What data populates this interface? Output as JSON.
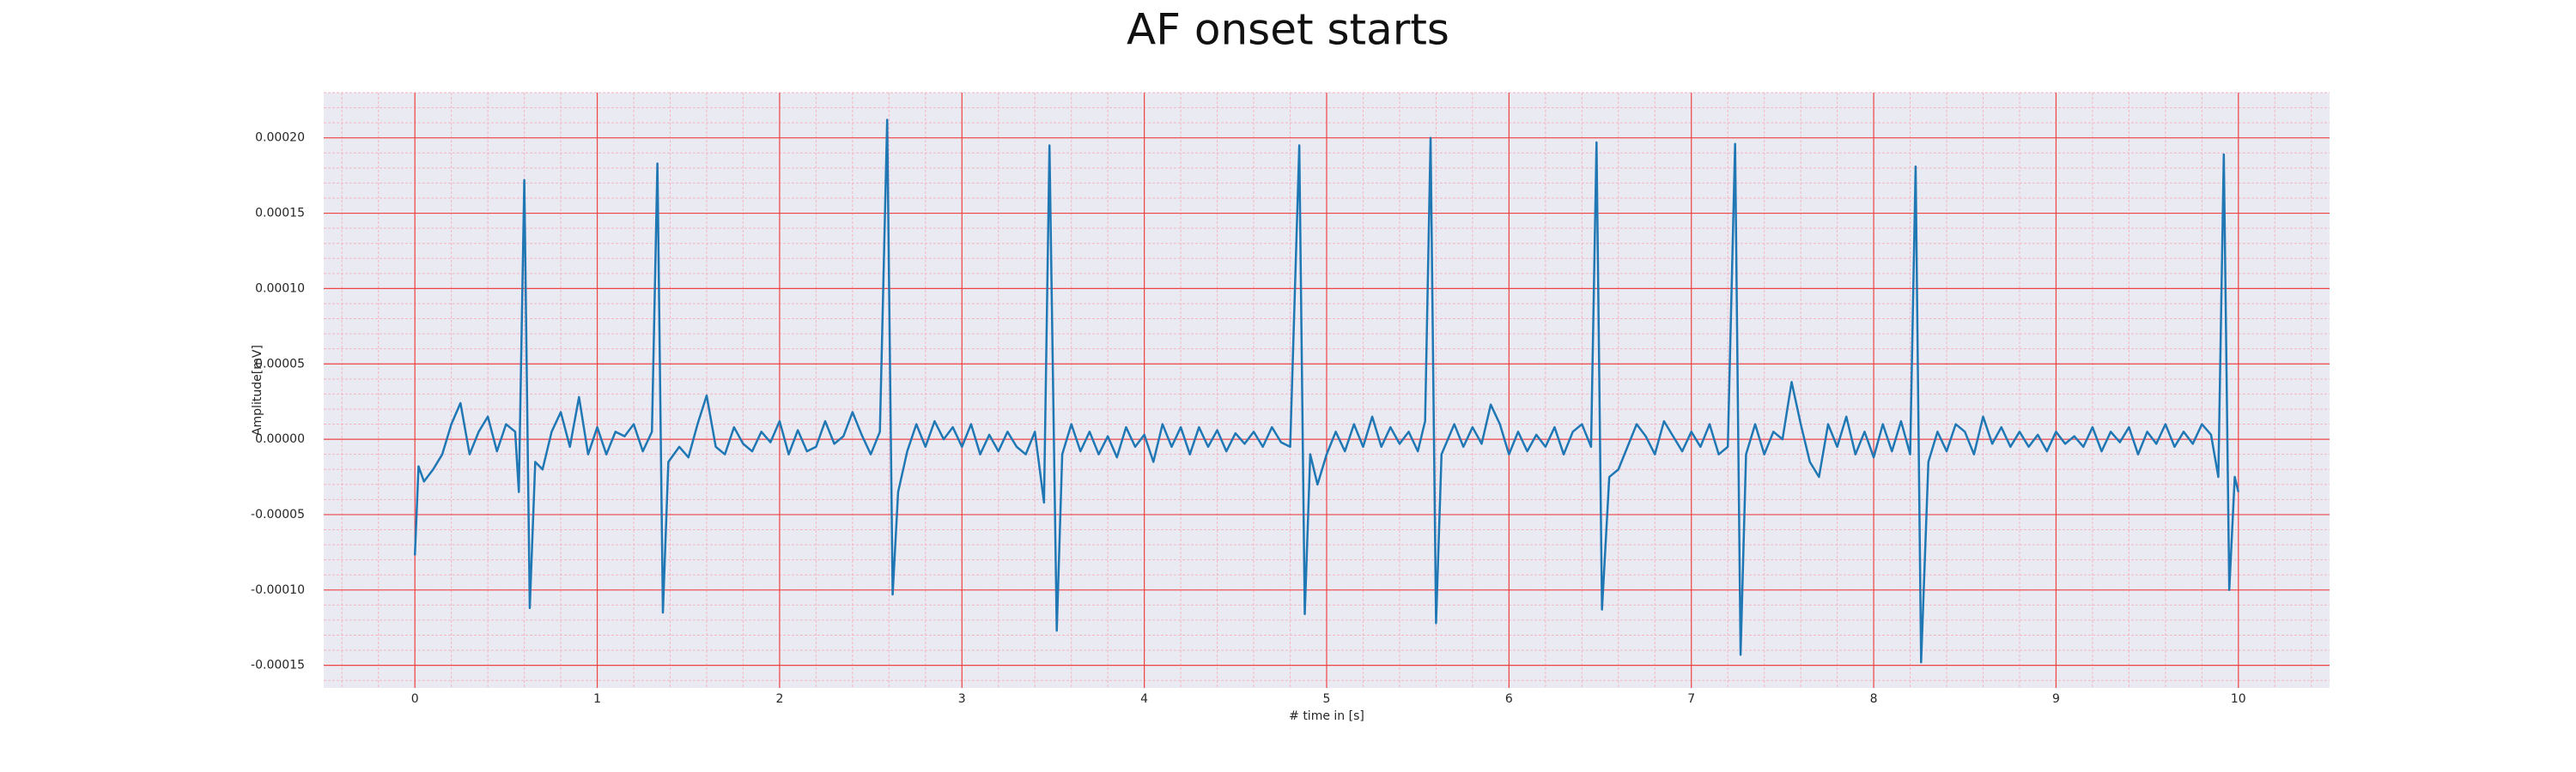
{
  "chart_data": {
    "type": "line",
    "title": "AF onset starts",
    "x_label": "# time in [s]",
    "y_label": "Amplitude[mV]",
    "color": "#1f77b4",
    "grid": true,
    "minor_grid": {
      "x_step": 0.2,
      "y_step": 1e-05
    },
    "xlim": [
      -0.5,
      10.5
    ],
    "ylim": [
      -0.000165,
      0.00023
    ],
    "xticks": [
      0,
      1,
      2,
      3,
      4,
      5,
      6,
      7,
      8,
      9,
      10
    ],
    "yticks": [
      {
        "value": -0.00015,
        "label": "-0.00015"
      },
      {
        "value": -0.0001,
        "label": "-0.00010"
      },
      {
        "value": -5e-05,
        "label": "-0.00005"
      },
      {
        "value": 0,
        "label": "0.00000"
      },
      {
        "value": 5e-05,
        "label": "0.00005"
      },
      {
        "value": 0.0001,
        "label": "0.00010"
      },
      {
        "value": 0.00015,
        "label": "0.00015"
      },
      {
        "value": 0.0002,
        "label": "0.00020"
      }
    ],
    "x": [
      0,
      0.02,
      0.05,
      0.1,
      0.15,
      0.2,
      0.25,
      0.3,
      0.35,
      0.4,
      0.45,
      0.5,
      0.55,
      0.57,
      0.6,
      0.63,
      0.66,
      0.7,
      0.75,
      0.8,
      0.85,
      0.9,
      0.95,
      1.0,
      1.05,
      1.1,
      1.15,
      1.2,
      1.25,
      1.3,
      1.33,
      1.36,
      1.39,
      1.45,
      1.5,
      1.55,
      1.6,
      1.65,
      1.7,
      1.75,
      1.8,
      1.85,
      1.9,
      1.95,
      2.0,
      2.05,
      2.1,
      2.15,
      2.2,
      2.25,
      2.3,
      2.35,
      2.4,
      2.45,
      2.5,
      2.55,
      2.59,
      2.62,
      2.65,
      2.7,
      2.75,
      2.8,
      2.85,
      2.9,
      2.95,
      3.0,
      3.05,
      3.1,
      3.15,
      3.2,
      3.25,
      3.3,
      3.35,
      3.4,
      3.45,
      3.48,
      3.52,
      3.55,
      3.6,
      3.65,
      3.7,
      3.75,
      3.8,
      3.85,
      3.9,
      3.95,
      4.0,
      4.05,
      4.1,
      4.15,
      4.2,
      4.25,
      4.3,
      4.35,
      4.4,
      4.45,
      4.5,
      4.55,
      4.6,
      4.65,
      4.7,
      4.75,
      4.8,
      4.85,
      4.88,
      4.91,
      4.95,
      5.0,
      5.05,
      5.1,
      5.15,
      5.2,
      5.25,
      5.3,
      5.35,
      5.4,
      5.45,
      5.5,
      5.54,
      5.57,
      5.6,
      5.63,
      5.7,
      5.75,
      5.8,
      5.85,
      5.9,
      5.95,
      6.0,
      6.05,
      6.1,
      6.15,
      6.2,
      6.25,
      6.3,
      6.35,
      6.4,
      6.45,
      6.48,
      6.51,
      6.55,
      6.6,
      6.65,
      6.7,
      6.75,
      6.8,
      6.85,
      6.9,
      6.95,
      7.0,
      7.05,
      7.1,
      7.15,
      7.2,
      7.24,
      7.27,
      7.3,
      7.35,
      7.4,
      7.45,
      7.5,
      7.55,
      7.6,
      7.65,
      7.7,
      7.75,
      7.8,
      7.85,
      7.9,
      7.95,
      8.0,
      8.05,
      8.1,
      8.15,
      8.2,
      8.23,
      8.26,
      8.3,
      8.35,
      8.4,
      8.45,
      8.5,
      8.55,
      8.6,
      8.65,
      8.7,
      8.75,
      8.8,
      8.85,
      8.9,
      8.95,
      9.0,
      9.05,
      9.1,
      9.15,
      9.2,
      9.25,
      9.3,
      9.35,
      9.4,
      9.45,
      9.5,
      9.55,
      9.6,
      9.65,
      9.7,
      9.75,
      9.8,
      9.85,
      9.89,
      9.92,
      9.95,
      9.98,
      10.0
    ],
    "values": [
      -7.7e-05,
      -1.8e-05,
      -2.8e-05,
      -2e-05,
      -1e-05,
      1e-05,
      2.4e-05,
      -1e-05,
      5e-06,
      1.5e-05,
      -8e-06,
      1e-05,
      5e-06,
      -3.5e-05,
      0.000172,
      -0.000112,
      -1.5e-05,
      -2e-05,
      5e-06,
      1.8e-05,
      -5e-06,
      2.8e-05,
      -1e-05,
      8e-06,
      -1e-05,
      5e-06,
      2e-06,
      1e-05,
      -8e-06,
      5e-06,
      0.000183,
      -0.000115,
      -1.5e-05,
      -5e-06,
      -1.2e-05,
      1e-05,
      2.9e-05,
      -5e-06,
      -1e-05,
      8e-06,
      -3e-06,
      -8e-06,
      5e-06,
      -2e-06,
      1.2e-05,
      -1e-05,
      6e-06,
      -8e-06,
      -5e-06,
      1.2e-05,
      -3e-06,
      2e-06,
      1.8e-05,
      3e-06,
      -1e-05,
      5e-06,
      0.000212,
      -0.000103,
      -3.5e-05,
      -8e-06,
      1e-05,
      -5e-06,
      1.2e-05,
      0,
      8e-06,
      -5e-06,
      1e-05,
      -1e-05,
      3e-06,
      -8e-06,
      5e-06,
      -5e-06,
      -1e-05,
      5e-06,
      -4.2e-05,
      0.000195,
      -0.000127,
      -1e-05,
      1e-05,
      -8e-06,
      5e-06,
      -1e-05,
      2e-06,
      -1.2e-05,
      8e-06,
      -5e-06,
      3e-06,
      -1.5e-05,
      1e-05,
      -5e-06,
      8e-06,
      -1e-05,
      8e-06,
      -5e-06,
      6e-06,
      -8e-06,
      4e-06,
      -3e-06,
      5e-06,
      -5e-06,
      8e-06,
      -2e-06,
      -5e-06,
      0.000195,
      -0.000116,
      -1e-05,
      -3e-05,
      -1e-05,
      5e-06,
      -8e-06,
      1e-05,
      -5e-06,
      1.5e-05,
      -5e-06,
      8e-06,
      -3e-06,
      5e-06,
      -8e-06,
      1.2e-05,
      0.0002,
      -0.000122,
      -1e-05,
      1e-05,
      -5e-06,
      8e-06,
      -3e-06,
      2.3e-05,
      1e-05,
      -1e-05,
      5e-06,
      -8e-06,
      3e-06,
      -5e-06,
      8e-06,
      -1e-05,
      5e-06,
      1e-05,
      -5e-06,
      0.000197,
      -0.000113,
      -2.5e-05,
      -2e-05,
      -5e-06,
      1e-05,
      2e-06,
      -1e-05,
      1.2e-05,
      2e-06,
      -8e-06,
      5e-06,
      -5e-06,
      1e-05,
      -1e-05,
      -5e-06,
      0.000196,
      -0.000143,
      -1e-05,
      1e-05,
      -1e-05,
      5e-06,
      0,
      3.8e-05,
      1e-05,
      -1.5e-05,
      -2.5e-05,
      1e-05,
      -5e-06,
      1.5e-05,
      -1e-05,
      5e-06,
      -1.2e-05,
      1e-05,
      -8e-06,
      1.2e-05,
      -1e-05,
      0.000181,
      -0.000148,
      -1.5e-05,
      5e-06,
      -8e-06,
      1e-05,
      5e-06,
      -1e-05,
      1.5e-05,
      -3e-06,
      8e-06,
      -5e-06,
      5e-06,
      -5e-06,
      3e-06,
      -8e-06,
      5e-06,
      -3e-06,
      2e-06,
      -5e-06,
      8e-06,
      -8e-06,
      5e-06,
      -2e-06,
      8e-06,
      -1e-05,
      5e-06,
      -3e-06,
      1e-05,
      -5e-06,
      5e-06,
      -3e-06,
      1e-05,
      3e-06,
      -2.5e-05,
      0.000189,
      -0.0001,
      -2.5e-05,
      -3.5e-05
    ]
  }
}
